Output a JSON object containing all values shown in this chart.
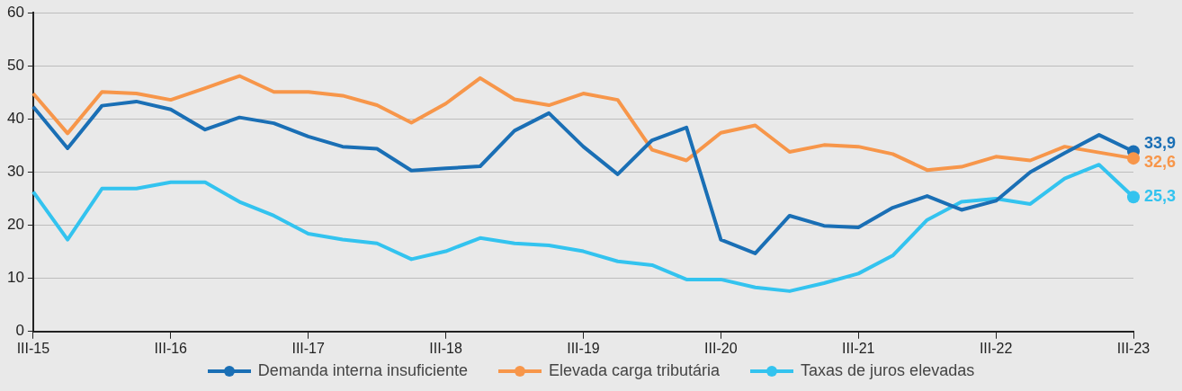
{
  "chart_data": {
    "type": "line",
    "categories": [
      "III-15",
      null,
      null,
      null,
      "III-16",
      null,
      null,
      null,
      "III-17",
      null,
      null,
      null,
      "III-18",
      null,
      null,
      null,
      "III-19",
      null,
      null,
      null,
      "III-20",
      null,
      null,
      null,
      "III-21",
      null,
      null,
      null,
      "III-22",
      null,
      null,
      null,
      "III-23"
    ],
    "series": [
      {
        "name": "Demanda interna insuficiente",
        "color": "#1a6fb5",
        "values": [
          42.3,
          34.5,
          42.5,
          43.3,
          41.8,
          38.0,
          40.3,
          39.2,
          36.7,
          34.8,
          34.4,
          30.3,
          30.7,
          31.1,
          37.8,
          41.1,
          34.8,
          29.6,
          36.0,
          38.4,
          17.3,
          14.7,
          21.8,
          19.9,
          19.6,
          23.3,
          25.5,
          22.9,
          24.6,
          30.0,
          33.6,
          37.0,
          33.9
        ],
        "value_labels": [
          null,
          null,
          null,
          null,
          null,
          null,
          null,
          null,
          null,
          null,
          null,
          null,
          null,
          null,
          null,
          null,
          null,
          null,
          null,
          null,
          null,
          null,
          null,
          null,
          null,
          null,
          null,
          null,
          null,
          null,
          null,
          null,
          "33,9"
        ]
      },
      {
        "name": "Elevada carga tributária",
        "color": "#f7964a",
        "values": [
          44.8,
          37.3,
          45.1,
          44.8,
          43.6,
          45.8,
          48.1,
          45.1,
          45.1,
          44.4,
          42.6,
          39.3,
          42.9,
          47.7,
          43.7,
          42.6,
          44.8,
          43.6,
          34.2,
          32.2,
          37.4,
          38.8,
          33.8,
          35.1,
          34.8,
          33.4,
          30.4,
          31.0,
          32.9,
          32.2,
          34.8,
          33.7,
          32.6
        ],
        "value_labels": [
          null,
          null,
          null,
          null,
          null,
          null,
          null,
          null,
          null,
          null,
          null,
          null,
          null,
          null,
          null,
          null,
          null,
          null,
          null,
          null,
          null,
          null,
          null,
          null,
          null,
          null,
          null,
          null,
          null,
          null,
          null,
          null,
          "32,6"
        ]
      },
      {
        "name": "Taxas de juros elevadas",
        "color": "#33c3ef",
        "values": [
          26.3,
          17.3,
          26.9,
          26.9,
          28.1,
          28.1,
          24.4,
          21.8,
          18.4,
          17.3,
          16.6,
          13.6,
          15.1,
          17.6,
          16.6,
          16.2,
          15.1,
          13.2,
          12.5,
          9.8,
          9.8,
          8.3,
          7.6,
          9.1,
          10.9,
          14.3,
          21.0,
          24.4,
          25.0,
          24.0,
          28.8,
          31.4,
          25.3
        ],
        "value_labels": [
          null,
          null,
          null,
          null,
          null,
          null,
          null,
          null,
          null,
          null,
          null,
          null,
          null,
          null,
          null,
          null,
          null,
          null,
          null,
          null,
          null,
          null,
          null,
          null,
          null,
          null,
          null,
          null,
          null,
          null,
          null,
          null,
          "25,3"
        ]
      }
    ],
    "ylim": [
      0,
      60
    ],
    "yticks": [
      0,
      10,
      20,
      30,
      40,
      50,
      60
    ],
    "grid": "y",
    "legend": "bottom"
  }
}
